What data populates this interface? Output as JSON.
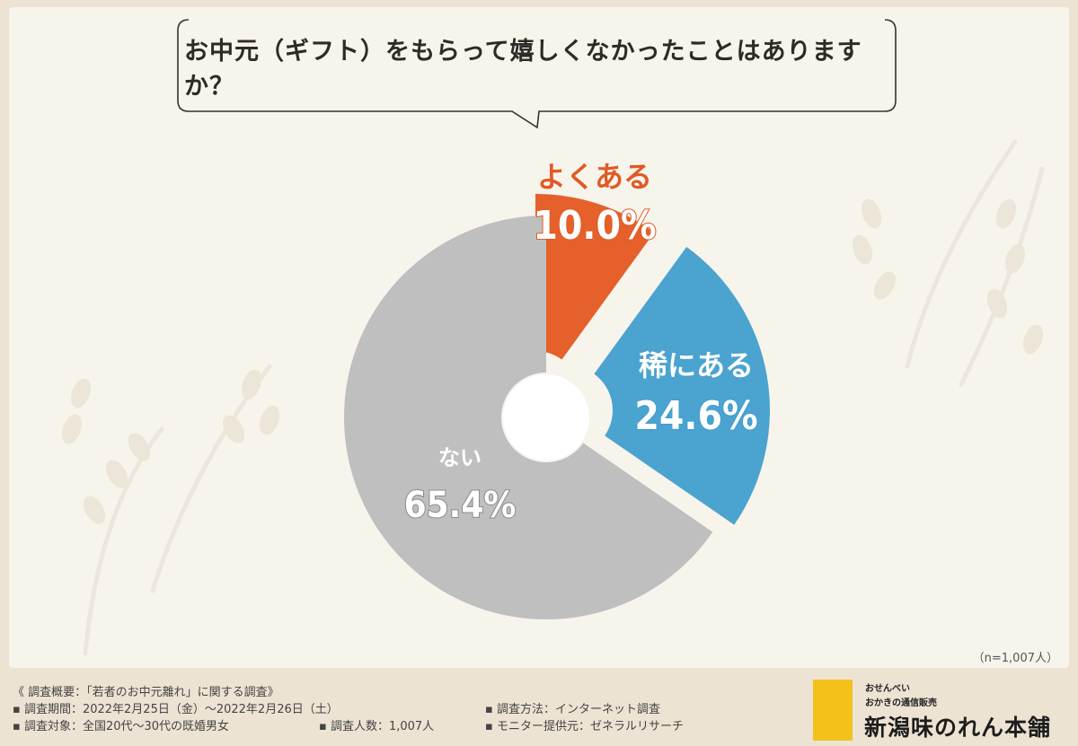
{
  "question": "お中元（ギフト）をもらって嬉しくなかったことはありますか？",
  "chart_data": {
    "type": "pie",
    "variant": "donut",
    "categories": [
      "よくある",
      "稀にある",
      "ない"
    ],
    "values": [
      10.0,
      24.6,
      65.4
    ],
    "value_labels": [
      "10.0%",
      "24.6%",
      "65.4%"
    ],
    "colors": [
      "#e5602b",
      "#4ba3cf",
      "#bfbfbf"
    ],
    "label_colors": [
      "#e05a24",
      "#3f9ccd",
      "#ffffff"
    ],
    "exploded": [
      "よくある",
      "稀にある"
    ]
  },
  "sample_note": "（n=1,007人）",
  "footer": {
    "title": "《 調査概要：「若者のお中元離れ」に関する調査》",
    "period": "▪ 調査期間：2022年2月25日（金）〜2022年2月26日（土）",
    "target": "▪ 調査対象：全国20代〜30代の既婚男女",
    "count": "▪ 調査人数：1,007人",
    "method": "▪ 調査方法：インターネット調査",
    "monitor": "▪ モニター提供元：ゼネラルリサーチ"
  },
  "logo": {
    "sub1": "おせんべい",
    "sub2": "おかきの通信販売",
    "name": "新潟味のれん本舗"
  }
}
